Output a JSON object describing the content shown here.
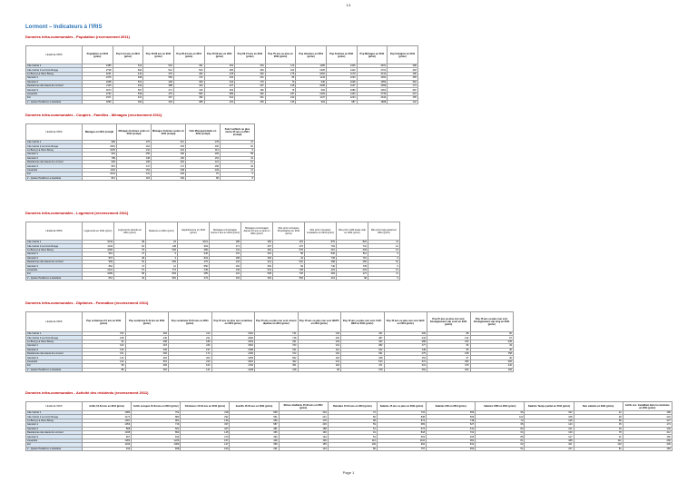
{
  "header": {
    "page_number": "1/1",
    "title": "Lormont – Indicateurs à l'IRIS"
  },
  "footer": {
    "text": "Page 1"
  },
  "sections": [
    {
      "title": "Données infra-communales  -  Population (recensement 2011)",
      "columns": [
        "Libellé de l'IRIS",
        "Population en 2011 (princ)",
        "Pop 0-14 ans en 2011 (princ)",
        "Pop 15-29 ans en 2011 (princ)",
        "Pop 30-44 ans en 2011 (princ)",
        "Pop 45-59 ans en 2011 (princ)",
        "Pop 60-74 ans en 2011 (princ)",
        "Pop 75 ans ou plus en 2011 (princ)",
        "Pop Hommes en 2011 (princ)",
        "Pop Femmes en 2011 (princ)",
        "Pop Ménages en 2011 (princ)",
        "Pop Immigrés en 2011 (princ)"
      ],
      "rows": [
        [
          "Cite Carriet 1",
          "2486",
          "612",
          "542",
          "491",
          "454",
          "264",
          "123",
          "1180",
          "1306",
          "2461",
          "398"
        ],
        [
          "Cite Carriet 2 La Croix Rouge",
          "2728",
          "694",
          "512",
          "540",
          "482",
          "336",
          "164",
          "1306",
          "1422",
          "2701",
          "418"
        ],
        [
          "Le Bourg La Vieux Bourg",
          "2241",
          "410",
          "376",
          "462",
          "478",
          "340",
          "175",
          "1062",
          "1179",
          "2214",
          "196"
        ],
        [
          "Génicart 1",
          "2376",
          "648",
          "566",
          "472",
          "403",
          "201",
          "86",
          "1143",
          "1233",
          "2362",
          "455"
        ],
        [
          "Génicart 2",
          "1968",
          "521",
          "448",
          "409",
          "344",
          "176",
          "70",
          "940",
          "1028",
          "1953",
          "362"
        ],
        [
          "Residences des Hauts de Lormont",
          "2115",
          "432",
          "388",
          "443",
          "427",
          "297",
          "128",
          "1008",
          "1107",
          "2096",
          "174"
        ],
        [
          "Génicart 3",
          "2073",
          "567",
          "471",
          "415",
          "363",
          "182",
          "75",
          "993",
          "1080",
          "2061",
          "387"
        ],
        [
          "Lissandre",
          "2762",
          "536",
          "475",
          "583",
          "589",
          "392",
          "187",
          "1329",
          "1433",
          "2735",
          "221"
        ],
        [
          "Fol",
          "2371",
          "431",
          "367",
          "496",
          "524",
          "361",
          "192",
          "1137",
          "1234",
          "2342",
          "155"
        ],
        [
          "2 - Quatre Pavillons La Gardette",
          "1890",
          "390",
          "320",
          "388",
          "402",
          "255",
          "135",
          "903",
          "987",
          "1868",
          "142"
        ]
      ]
    },
    {
      "title": "Données infra-communales  -  Couples - Familles - Ménages (recensement 2011)",
      "columns": [
        "Libellé de l'IRIS",
        "Ménages en 2011 (compl)",
        "Ménages Hommes seuls en 2011 (compl)",
        "Ménages Femmes seules en 2011 (compl)",
        "Fam Monoparentales en 2011 (compl)",
        "Fam 4 enfants ou plus moins 25 ans en 2011 (compl)"
      ],
      "rows": [
        [
          "Cite Carriet 1",
          "996",
          "176",
          "212",
          "178",
          "47"
        ],
        [
          "Cite Carriet 2 La Croix Rouge",
          "1081",
          "164",
          "236",
          "190",
          "52"
        ],
        [
          "Le Bourg La Vieux Bourg",
          "1003",
          "142",
          "224",
          "112",
          "9"
        ],
        [
          "Génicart 1",
          "904",
          "155",
          "182",
          "196",
          "58"
        ],
        [
          "Génicart 2",
          "789",
          "138",
          "160",
          "163",
          "41"
        ],
        [
          "Residences des Hauts de Lormont",
          "930",
          "128",
          "202",
          "121",
          "12"
        ],
        [
          "Génicart 3",
          "815",
          "147",
          "171",
          "158",
          "46"
        ],
        [
          "Lissandre",
          "1164",
          "154",
          "238",
          "129",
          "11"
        ],
        [
          "Fol",
          "1031",
          "141",
          "229",
          "97",
          "6"
        ],
        [
          "2 - Quatre Pavillons La Gardette",
          "812",
          "118",
          "184",
          "86",
          "8"
        ]
      ]
    },
    {
      "title": "Données infra-communales  -  Logement (recensement 2011)",
      "columns": [
        "Libellé de l'IRIS",
        "Logements en 2011 (princ)",
        "Logements vacants en 2011 (princ)",
        "Maisons en 2011 (princ)",
        "Appartements en 2011 (princ)",
        "Ménages emménagés moins 2 ans en 2011 (princ)",
        "Ménages emménagés depuis 10 ans ou plus en 2011 (princ)",
        "Rés princ occupées Propriétaires en 2011 (princ)",
        "Rés princ occupées Locataires en 2011 (princ)",
        "Rés princ HLM louée vide en 2011 (princ)",
        "Rés princ logé gratuit en 2011 (princ)"
      ],
      "rows": [
        [
          "Cite Carriet 1",
          "1044",
          "48",
          "22",
          "1021",
          "186",
          "460",
          "115",
          "870",
          "822",
          "11"
        ],
        [
          "Cite Carriet 2 La Croix Rouge",
          "1143",
          "62",
          "148",
          "993",
          "171",
          "497",
          "276",
          "793",
          "701",
          "12"
        ],
        [
          "Le Bourg La Vieux Bourg",
          "1082",
          "79",
          "694",
          "386",
          "141",
          "462",
          "579",
          "410",
          "203",
          "14"
        ],
        [
          "Génicart 1",
          "951",
          "47",
          "5",
          "946",
          "176",
          "391",
          "58",
          "840",
          "811",
          "6"
        ],
        [
          "Génicart 2",
          "837",
          "48",
          "3",
          "834",
          "158",
          "330",
          "44",
          "739",
          "716",
          "6"
        ],
        [
          "Residences des Hauts de Lormont",
          "983",
          "53",
          "506",
          "476",
          "132",
          "414",
          "522",
          "398",
          "256",
          "10"
        ],
        [
          "Génicart 3",
          "862",
          "47",
          "12",
          "850",
          "163",
          "352",
          "69",
          "740",
          "705",
          "6"
        ],
        [
          "Lissandre",
          "1221",
          "57",
          "774",
          "445",
          "149",
          "541",
          "728",
          "424",
          "223",
          "12"
        ],
        [
          "Fol",
          "1089",
          "58",
          "803",
          "285",
          "124",
          "508",
          "736",
          "284",
          "127",
          "11"
        ],
        [
          "2 - Quatre Pavillons La Gardette",
          "861",
          "49",
          "581",
          "279",
          "103",
          "392",
          "584",
          "219",
          "98",
          "9"
        ]
      ]
    },
    {
      "title": "Données infra-communales  -  Diplômes - Formation (recensement 2011)",
      "columns": [
        "Libellé de l'IRIS",
        "Pop scolarisée 2-5 ans en 2011 (princ)",
        "Pop scolarisée 6-14 ans en 2011 (princ)",
        "Pop scolarisée 15-24 ans en 2011 (princ)",
        "Pop 15 ans ou plus non scolarisée en 2011 (princ)",
        "Pop 15 ans ou plus non scol. Aucun diplôme en 2011 (princ)",
        "Pop 15 ans ou plus non scol. BEPC en 2011 (princ)",
        "Pop 15 ans ou plus non scol. CAP-BEP en 2011 (princ)",
        "Pop 15 ans ou plus non scol. BAC en 2011 (princ)",
        "Pop 15 ans ou plus non scol. Enseignement sup court en 2011 (princ)",
        "Pop 15 ans ou plus non scol. Enseignement sup long en 2011 (princ)"
      ],
      "rows": [
        [
          "Cite Carriet 1",
          "152",
          "392",
          "214",
          "1662",
          "741",
          "146",
          "421",
          "206",
          "88",
          "60"
        ],
        [
          "Cite Carriet 2 La Croix Rouge",
          "168",
          "440",
          "221",
          "1830",
          "718",
          "152",
          "487",
          "244",
          "132",
          "97"
        ],
        [
          "Le Bourg La Vieux Bourg",
          "94",
          "268",
          "189",
          "1603",
          "331",
          "103",
          "402",
          "288",
          "244",
          "235"
        ],
        [
          "Génicart 1",
          "163",
          "415",
          "246",
          "1562",
          "763",
          "131",
          "382",
          "177",
          "66",
          "43"
        ],
        [
          "Génicart 2",
          "134",
          "330",
          "197",
          "1289",
          "611",
          "112",
          "322",
          "148",
          "56",
          "40"
        ],
        [
          "Residences des Hauts de Lormont",
          "101",
          "284",
          "172",
          "1496",
          "372",
          "102",
          "391",
          "275",
          "198",
          "158"
        ],
        [
          "Génicart 3",
          "144",
          "362",
          "203",
          "1359",
          "652",
          "118",
          "338",
          "154",
          "57",
          "40"
        ],
        [
          "Lissandre",
          "124",
          "351",
          "210",
          "1991",
          "402",
          "131",
          "514",
          "372",
          "306",
          "266"
        ],
        [
          "Fol",
          "98",
          "284",
          "164",
          "1792",
          "351",
          "118",
          "471",
          "331",
          "279",
          "242"
        ],
        [
          "2 - Quatre Pavillons La Gardette",
          "88",
          "252",
          "141",
          "1428",
          "318",
          "96",
          "379",
          "262",
          "204",
          "169"
        ]
      ]
    },
    {
      "title": "Données infra-communales  -  Activité des résidents (recensement 2011)",
      "columns": [
        "Libellé de l'IRIS",
        "Actifs 15-64 ans en 2011 (princ)",
        "Actifs occupés 15-64 ans en 2011 (princ)",
        "Chômeurs 15-64 ans en 2011 (princ)",
        "Inactifs 15-64 ans en 2011 (princ)",
        "Elèves étudiants 15-64 ans en 2011 (princ)",
        "Retraités 15-64 ans en 2011 (princ)",
        "Salariés 15 ans ou plus en 2011 (princ)",
        "Salariés CDI en 2011 (princ)",
        "Salariés CDD en 2011 (princ)",
        "Salariés Temps partiel en 2011 (princ)",
        "Non salariés en 2011 (princ)",
        "Actifs occ. travaillant dans la commune en 2011 (princ)"
      ],
      "rows": [
        [
          "Cite Carriet 1",
          "1080",
          "762",
          "318",
          "568",
          "204",
          "70",
          "722",
          "566",
          "96",
          "152",
          "42",
          "189"
        ],
        [
          "Cite Carriet 2 La Croix Rouge",
          "1174",
          "883",
          "291",
          "551",
          "212",
          "86",
          "838",
          "669",
          "102",
          "168",
          "48",
          "204"
        ],
        [
          "Le Bourg La Vieux Bourg",
          "1097",
          "961",
          "136",
          "359",
          "178",
          "98",
          "874",
          "748",
          "72",
          "148",
          "89",
          "227"
        ],
        [
          "Génicart 1",
          "1053",
          "716",
          "337",
          "587",
          "236",
          "59",
          "683",
          "527",
          "95",
          "143",
          "35",
          "174"
        ],
        [
          "Génicart 2",
          "868",
          "601",
          "267",
          "481",
          "188",
          "51",
          "574",
          "441",
          "82",
          "121",
          "29",
          "149"
        ],
        [
          "Residences des Hauts de Lormont",
          "1038",
          "893",
          "145",
          "366",
          "166",
          "91",
          "818",
          "702",
          "64",
          "139",
          "78",
          "212"
        ],
        [
          "Génicart 3",
          "907",
          "634",
          "273",
          "493",
          "194",
          "53",
          "603",
          "465",
          "85",
          "127",
          "31",
          "156"
        ],
        [
          "Lissandre",
          "1383",
          "1226",
          "157",
          "428",
          "199",
          "116",
          "1116",
          "962",
          "81",
          "188",
          "112",
          "268"
        ],
        [
          "Fol",
          "1196",
          "1069",
          "127",
          "359",
          "155",
          "109",
          "964",
          "841",
          "62",
          "161",
          "104",
          "236"
        ],
        [
          "2 - Quatre Pavillons La Gardette",
          "942",
          "838",
          "104",
          "291",
          "133",
          "86",
          "757",
          "653",
          "51",
          "127",
          "81",
          "183"
        ]
      ]
    }
  ]
}
